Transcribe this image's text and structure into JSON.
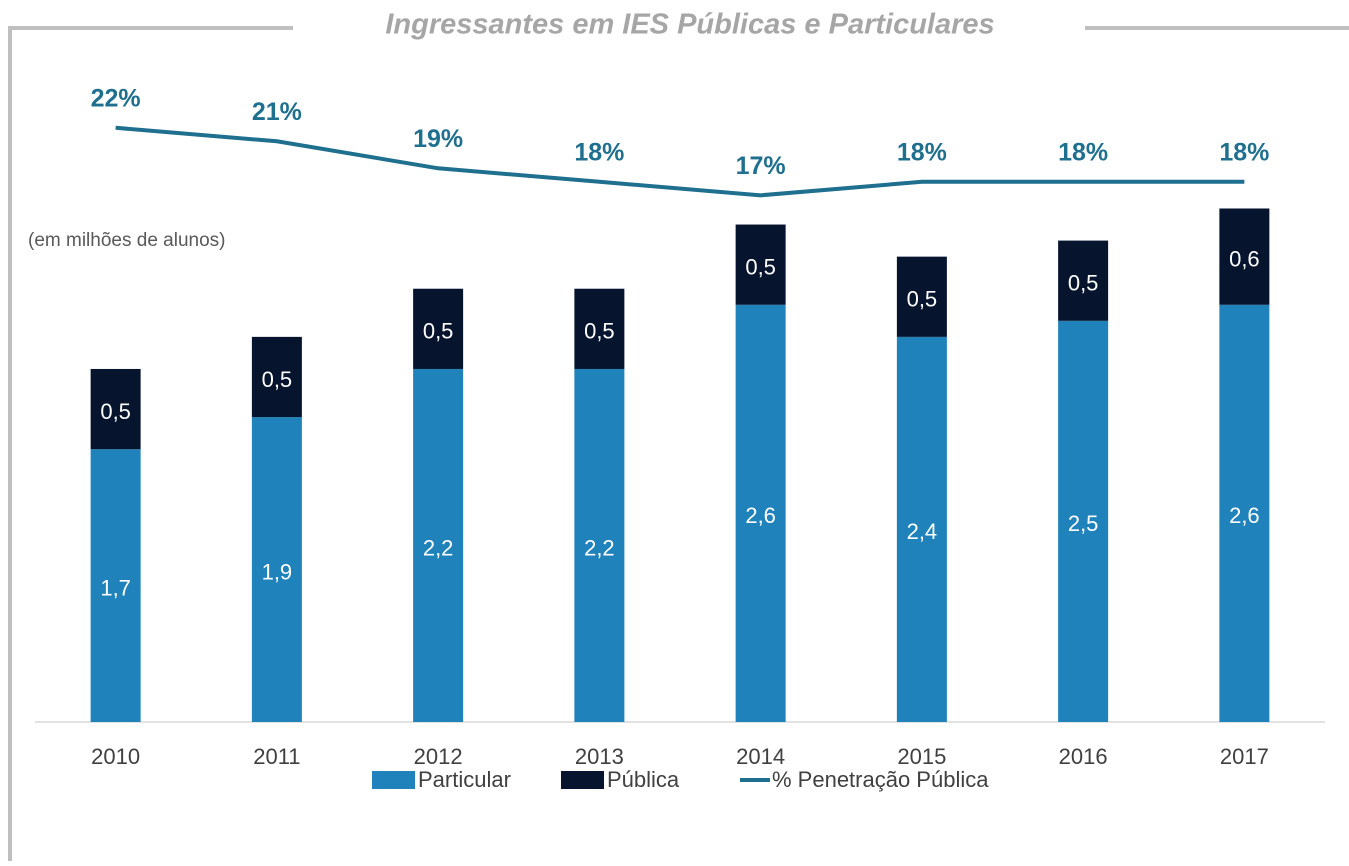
{
  "chart_data": {
    "type": "bar",
    "stacked": true,
    "title": "Ingressantes em IES Públicas e Particulares",
    "annotation": "(em milhões de alunos)",
    "categories": [
      "2010",
      "2011",
      "2012",
      "2013",
      "2014",
      "2015",
      "2016",
      "2017"
    ],
    "series": [
      {
        "name": "Particular",
        "type": "bar",
        "color": "#1f82bb",
        "values": [
          1.7,
          1.9,
          2.2,
          2.2,
          2.6,
          2.4,
          2.5,
          2.6
        ],
        "value_labels": [
          "1,7",
          "1,9",
          "2,2",
          "2,2",
          "2,6",
          "2,4",
          "2,5",
          "2,6"
        ]
      },
      {
        "name": "Pública",
        "type": "bar",
        "color": "#06142e",
        "values": [
          0.5,
          0.5,
          0.5,
          0.5,
          0.5,
          0.5,
          0.5,
          0.6
        ],
        "value_labels": [
          "0,5",
          "0,5",
          "0,5",
          "0,5",
          "0,5",
          "0,5",
          "0,5",
          "0,6"
        ]
      },
      {
        "name": "% Penetração Pública",
        "type": "line",
        "axis": "y2",
        "color": "#1f6f8f",
        "values": [
          22,
          21,
          19,
          18,
          17,
          18,
          18,
          18
        ],
        "value_labels": [
          "22%",
          "21%",
          "19%",
          "18%",
          "17%",
          "18%",
          "18%",
          "18%"
        ]
      }
    ],
    "ylim": [
      0,
      4.25
    ],
    "y2lim": [
      -22,
      28.5
    ],
    "legend": "bottom",
    "grid": false
  }
}
